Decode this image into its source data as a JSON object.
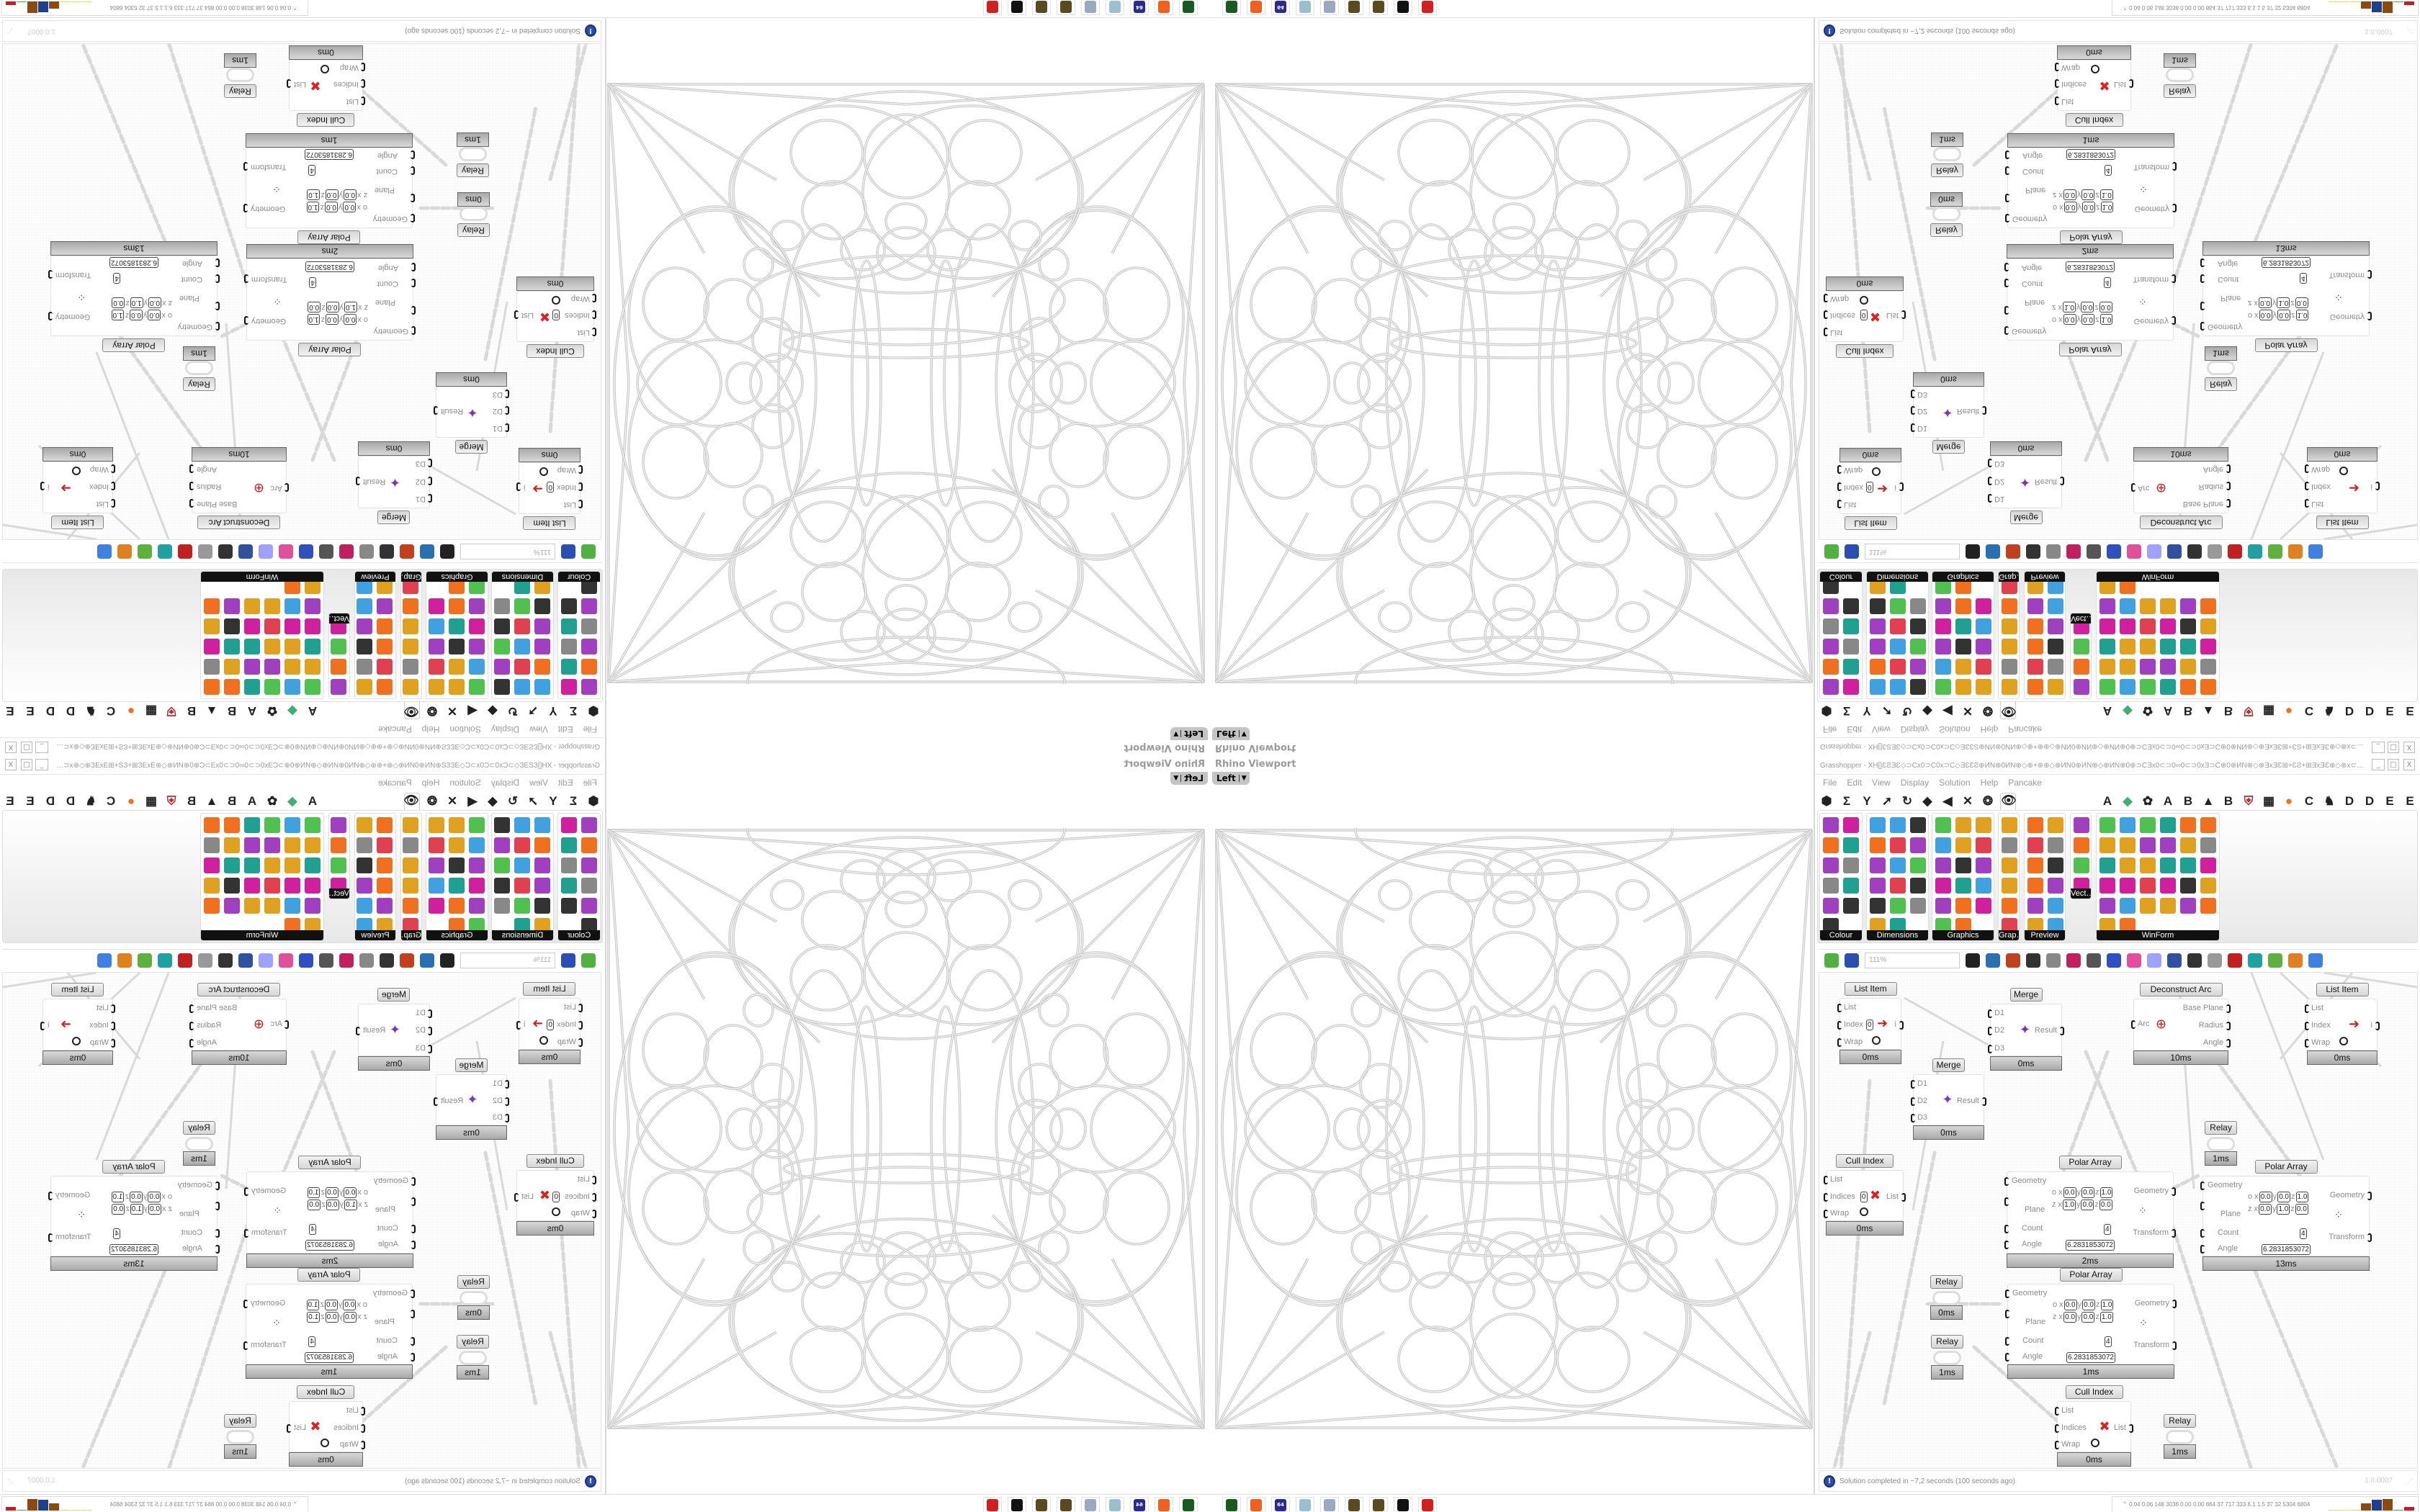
{
  "rhino_viewport": {
    "title": "Rhino Viewport",
    "view": "Left"
  },
  "grasshopper": {
    "title": "Grasshopper - XH[]ƐƧƎƐ◇⊃Cх0⊃C0х⊃C◇ƎƐƐƧ⊕ИN⊕0ИN⊕◇⊕+⊕⊕◇⊕ИN0⊕ИN⊕◇⊕ИN⊕0⊕⊃CƎх0⊂⊃0∞0⊂⊃0хƎ⊃C⊕0⊕ИN⊕◇⊕ƎхƎƐ⊞+ƐƧ+⊞ƎхƎƐ⊕◇⊕х⊂⊃ƎƐ⊞⊕⊃C...",
    "window_buttons": {
      "minimize": "_",
      "maximize": "□",
      "close": "X"
    },
    "menu": [
      "File",
      "Edit",
      "View",
      "Display",
      "Solution",
      "Help",
      "Pancake"
    ],
    "tab_strip": [
      {
        "icon": "hexagon-icon",
        "glyph": "⬢"
      },
      {
        "icon": "sigma-icon",
        "glyph": "Σ"
      },
      {
        "icon": "fork-icon",
        "glyph": "Y"
      },
      {
        "icon": "arrow-icon",
        "glyph": "➚"
      },
      {
        "icon": "curve-icon",
        "glyph": "↻"
      },
      {
        "icon": "surface-icon",
        "glyph": "◆"
      },
      {
        "icon": "mesh-icon",
        "glyph": "◀"
      },
      {
        "icon": "intersect-icon",
        "glyph": "✕"
      },
      {
        "icon": "transform-icon",
        "glyph": "❂"
      },
      {
        "icon": "eye-icon",
        "glyph": "👁",
        "active": true
      },
      {
        "icon": "letter-a-icon",
        "glyph": "A"
      },
      {
        "icon": "leaf-icon",
        "glyph": "◆"
      },
      {
        "icon": "flower-icon",
        "glyph": "✿"
      },
      {
        "icon": "letter-a-icon",
        "glyph": "A"
      },
      {
        "icon": "letter-b-icon",
        "glyph": "B"
      },
      {
        "icon": "mountain-icon",
        "glyph": "▲"
      },
      {
        "icon": "letter-b-icon",
        "glyph": "B"
      },
      {
        "icon": "shield-icon",
        "glyph": "⛨"
      },
      {
        "icon": "grid-icon",
        "glyph": "▦"
      },
      {
        "icon": "orange-circle-icon",
        "glyph": "●"
      },
      {
        "icon": "letter-c-icon",
        "glyph": "C"
      },
      {
        "icon": "rooster-icon",
        "glyph": "♞"
      },
      {
        "icon": "letter-d-icon",
        "glyph": "D"
      },
      {
        "icon": "letter-d-icon",
        "glyph": "D"
      },
      {
        "icon": "letter-e-icon",
        "glyph": "E"
      },
      {
        "icon": "letter-e-icon",
        "glyph": "E"
      },
      {
        "icon": "dotted-square-icon",
        "glyph": "▩"
      },
      {
        "icon": "letter-e-icon",
        "glyph": "E"
      }
    ],
    "ribbon_panels": [
      {
        "name": "Colour",
        "icons": [
          "colour-wheel",
          "gradient",
          "colour-cube",
          "prism",
          "colour-box",
          "hsl",
          "red-sphere",
          "hsv",
          "red-ball",
          "spectrum",
          "gradient-square"
        ]
      },
      {
        "name": "Dimensions",
        "icons": [
          "tag",
          "linear-dim",
          "angle-dim",
          "text-tag",
          "line-dim",
          "box-dim",
          "magenta-swatch",
          "ordinate-dim",
          "baseline-dim",
          "hatch",
          "radius-dim",
          "diameter-dim",
          "curve-dim",
          "arc-dim",
          "leader",
          "line",
          "marker"
        ]
      },
      {
        "name": "Graphics",
        "icons": [
          "circle",
          "text-t",
          "eye",
          "dots",
          "text-t2",
          "frame",
          "blur",
          "list",
          "asterisk",
          "ring",
          "link",
          "image-save",
          "sphere",
          "dot-ring",
          "save-star",
          "shaded-ball",
          "landscape"
        ]
      },
      {
        "name": "Grap…",
        "icons": [
          "histogram",
          "gradient-legend",
          "pie",
          "line-graph",
          "image",
          "graph"
        ]
      },
      {
        "name": "Preview",
        "icons": [
          "balloon",
          "camera",
          "sphere-preview",
          "landscape",
          "blobs",
          "heart-mesh",
          "red-blobs",
          "green-heart",
          "diagonal",
          "hearts",
          "sl-script",
          "tree-image"
        ]
      },
      {
        "name": "Vect…",
        "icons": [
          "sort-numbers",
          "path",
          "arrows-red",
          "arrows-green"
        ]
      },
      {
        "name": "WinForm",
        "icons": [
          "font-a",
          "list-panel",
          "text-lines",
          "label",
          "chart",
          "grid-control",
          "hatch-green",
          "slider-h",
          "trackbar",
          "table",
          "pie-chart",
          "split",
          "checkbox",
          "text-block",
          "picture",
          "pie-color",
          "people",
          "panel-list",
          "numeric",
          "tree",
          "arrows-col",
          "font-add",
          "ok-button",
          "numeric-up",
          "progress-v",
          "list-box",
          "panel-green",
          "calendar",
          "scroll-v",
          "progress-h",
          "bar-chart",
          "step"
        ]
      }
    ],
    "canvas_toolbar": {
      "zoom": "111%",
      "icons": [
        "new-file-icon",
        "save-icon",
        "zoom-extents-icon",
        "preview-eye-icon",
        "sketch-brush-icon",
        "cable-icon",
        "at-icon",
        "gha-icon",
        "document-icon",
        "search-s-icon",
        "package-icon",
        "lightbulb-icon",
        "wire-cross-icon",
        "bottle-icon",
        "ring-icon",
        "red-gem-icon",
        "teal-icon",
        "green-gem-icon",
        "half-ball-icon",
        "blue-sphere-icon"
      ]
    },
    "nodes": [
      {
        "type": "list-item",
        "label": "List Item",
        "inputs": [
          "List",
          "Index",
          "Wrap"
        ],
        "index_value": "0",
        "outputs": [
          "i"
        ],
        "time": "0ms"
      },
      {
        "type": "merge",
        "label": "Merge",
        "inputs": [
          "D1",
          "D2",
          "D3"
        ],
        "outputs": [
          "Result"
        ],
        "time": "0ms"
      },
      {
        "type": "deconstruct-arc",
        "label": "Deconstruct Arc",
        "inputs": [
          "Arc"
        ],
        "outputs": [
          "Base Plane",
          "Radius",
          "Angle"
        ],
        "time": "10ms"
      },
      {
        "type": "list-item",
        "label": "List Item",
        "inputs": [
          "List",
          "Index",
          "Wrap"
        ],
        "outputs": [
          "i"
        ],
        "time": "0ms"
      },
      {
        "type": "merge",
        "label": "Merge",
        "inputs": [
          "D1",
          "D2",
          "D3"
        ],
        "outputs": [
          "Result"
        ],
        "time": "0ms"
      },
      {
        "type": "relay",
        "label": "Relay",
        "time": "1ms"
      },
      {
        "type": "cull-index",
        "label": "Cull Index",
        "inputs": [
          "List",
          "Indices",
          "Wrap"
        ],
        "index_value": "0",
        "outputs": [
          "List"
        ],
        "time": "0ms"
      },
      {
        "type": "polar-array",
        "label": "Polar Array",
        "inputs": [
          "Geometry",
          "Plane",
          "Count",
          "Angle"
        ],
        "outputs": [
          "Geometry",
          "Transform"
        ],
        "origin": [
          "0.0",
          "0.0",
          "1.0"
        ],
        "zaxis": [
          "1.0",
          "0.0",
          "0.0"
        ],
        "count": "4",
        "angle": "6.2831853072",
        "time": "2ms"
      },
      {
        "type": "polar-array",
        "label": "Polar Array",
        "inputs": [
          "Geometry",
          "Plane",
          "Count",
          "Angle"
        ],
        "outputs": [
          "Geometry",
          "Transform"
        ],
        "origin": [
          "0.0",
          "0.0",
          "1.0"
        ],
        "zaxis": [
          "0.0",
          "1.0",
          "0.0"
        ],
        "count": "4",
        "angle": "6.2831853072",
        "time": "13ms"
      },
      {
        "type": "relay",
        "label": "Relay",
        "time": "0ms"
      },
      {
        "type": "relay",
        "label": "Relay",
        "time": "1ms"
      },
      {
        "type": "polar-array",
        "label": "Polar Array",
        "inputs": [
          "Geometry",
          "Plane",
          "Count",
          "Angle"
        ],
        "outputs": [
          "Geometry",
          "Transform"
        ],
        "origin": [
          "0.0",
          "0.0",
          "1.0"
        ],
        "zaxis": [
          "0.0",
          "0.0",
          "1.0"
        ],
        "count": "4",
        "angle": "6.2831853072",
        "time": "1ms"
      },
      {
        "type": "cull-index",
        "label": "Cull Index",
        "inputs": [
          "List",
          "Indices",
          "Wrap"
        ],
        "outputs": [
          "List"
        ],
        "time": "0ms"
      },
      {
        "type": "relay",
        "label": "Relay",
        "time": "1ms"
      }
    ],
    "status": {
      "message": "Solution completed in ~7,2 seconds (100 seconds ago)",
      "version": "1.0.0007"
    }
  },
  "taskbar": {
    "apps": [
      "monitor-app-icon",
      "firefox-icon",
      "floppy-64-icon",
      "notepad-icon",
      "notepad-scroll-icon",
      "pinecone-icon",
      "pinecone-icon",
      "penguin-icon",
      "red-app-icon"
    ],
    "floppy_label": "64",
    "perf_text": "0.04 0.06 148 3038 0.00 0.00 864 37 717 333 6.1 1.5 37 32 5304 6804",
    "perf_bars": [
      {
        "color": "#e8e040",
        "level": 0.05
      },
      {
        "color": "#e8e040",
        "level": 0.05
      },
      {
        "color": "#e8e040",
        "level": 0.05
      },
      {
        "color": "#8a4a10",
        "level": 0.6
      },
      {
        "color": "#1f3f8f",
        "level": 0.95
      },
      {
        "color": "#8a4a10",
        "level": 1.0
      },
      {
        "color": "#3cc040",
        "level": 0.05
      },
      {
        "color": "#c02020",
        "level": 0.3
      }
    ]
  }
}
